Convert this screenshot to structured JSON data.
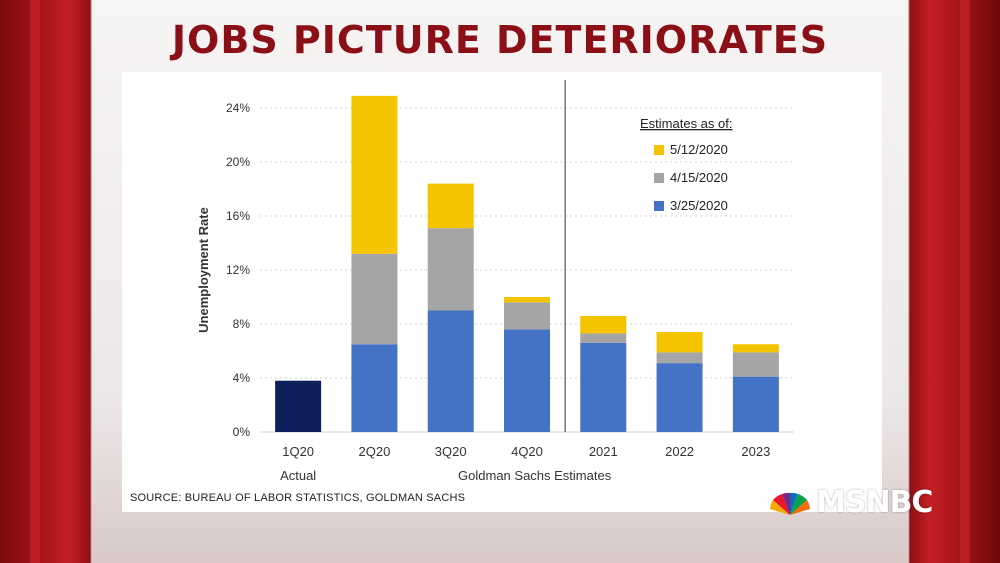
{
  "headline": "JOBS PICTURE DETERIORATES",
  "source": "SOURCE: BUREAU OF LABOR STATISTICS, GOLDMAN SACHS",
  "logo": "MSNBC",
  "colors": {
    "headline": "#8a0f17",
    "actual": "#0f1f5c",
    "3/25/2020": "#4472c4",
    "4/15/2020": "#a5a5a5",
    "5/12/2020": "#f5c400"
  },
  "chart_data": {
    "type": "bar",
    "stacked": true,
    "ylabel": "Unemployment Rate",
    "ylim": [
      0,
      24
    ],
    "yticks": [
      "0%",
      "4%",
      "8%",
      "12%",
      "16%",
      "20%",
      "24%"
    ],
    "grid": "horizontal-dotted",
    "categories": [
      "1Q20",
      "2Q20",
      "3Q20",
      "4Q20",
      "2021",
      "2022",
      "2023"
    ],
    "group_labels": [
      {
        "label": "Actual",
        "categories": [
          "1Q20"
        ]
      },
      {
        "label": "Goldman Sachs Estimates",
        "categories": [
          "2Q20",
          "3Q20",
          "4Q20",
          "2021",
          "2022",
          "2023"
        ]
      }
    ],
    "actual": {
      "category": "1Q20",
      "value": 3.8
    },
    "legend": {
      "title": "Estimates as of:",
      "placement": "top-right"
    },
    "series": [
      {
        "name": "3/25/2020",
        "values": [
          null,
          6.5,
          9.0,
          7.6,
          6.6,
          5.1,
          4.1
        ]
      },
      {
        "name": "4/15/2020",
        "values": [
          null,
          6.7,
          6.1,
          2.0,
          0.7,
          0.8,
          1.8
        ]
      },
      {
        "name": "5/12/2020",
        "values": [
          null,
          11.7,
          3.3,
          0.4,
          1.3,
          1.5,
          0.6
        ]
      }
    ]
  }
}
